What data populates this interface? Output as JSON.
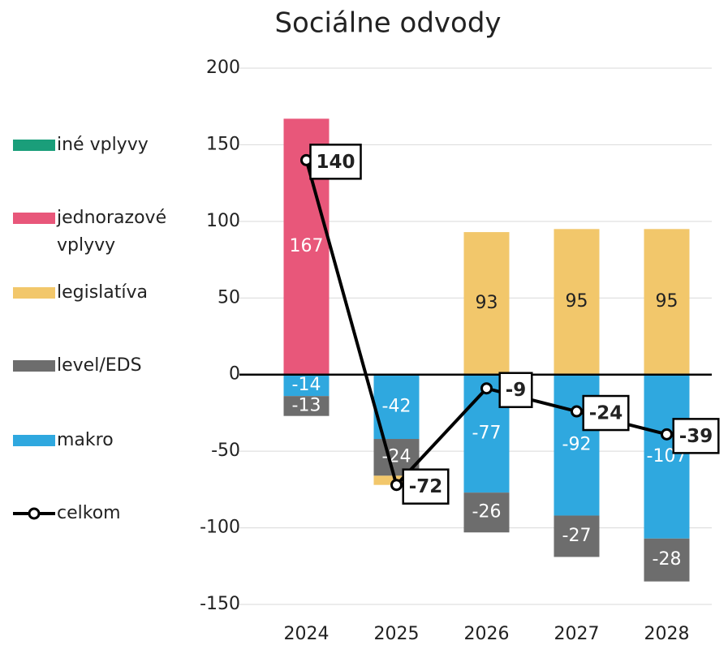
{
  "chart_data": {
    "type": "bar",
    "stacked": true,
    "title": "Sociálne odvody",
    "categories": [
      "2024",
      "2025",
      "2026",
      "2027",
      "2028"
    ],
    "ylim": [
      -150,
      200
    ],
    "yticks": [
      -150,
      -100,
      -50,
      0,
      50,
      100,
      150,
      200
    ],
    "grid": true,
    "legend": "left",
    "series": [
      {
        "name": "iné vplyvy",
        "color": "#1a9e7a",
        "values": [
          0,
          0,
          0,
          0,
          0
        ]
      },
      {
        "name": "jednorazové vplyvy",
        "color": "#e8577a",
        "values": [
          167,
          0,
          0,
          0,
          0
        ]
      },
      {
        "name": "legislatíva",
        "color": "#f2c76b",
        "values": [
          0,
          -6,
          93,
          95,
          95
        ]
      },
      {
        "name": "level/EDS",
        "color": "#6d6d6d",
        "values": [
          -13,
          -24,
          -26,
          -27,
          -28
        ]
      },
      {
        "name": "makro",
        "color": "#2fa8df",
        "values": [
          -14,
          -42,
          -77,
          -92,
          -107
        ]
      },
      {
        "name": "celkom",
        "color": "#000000",
        "type": "line",
        "values": [
          140,
          -72,
          -9,
          -24,
          -39
        ]
      }
    ]
  }
}
